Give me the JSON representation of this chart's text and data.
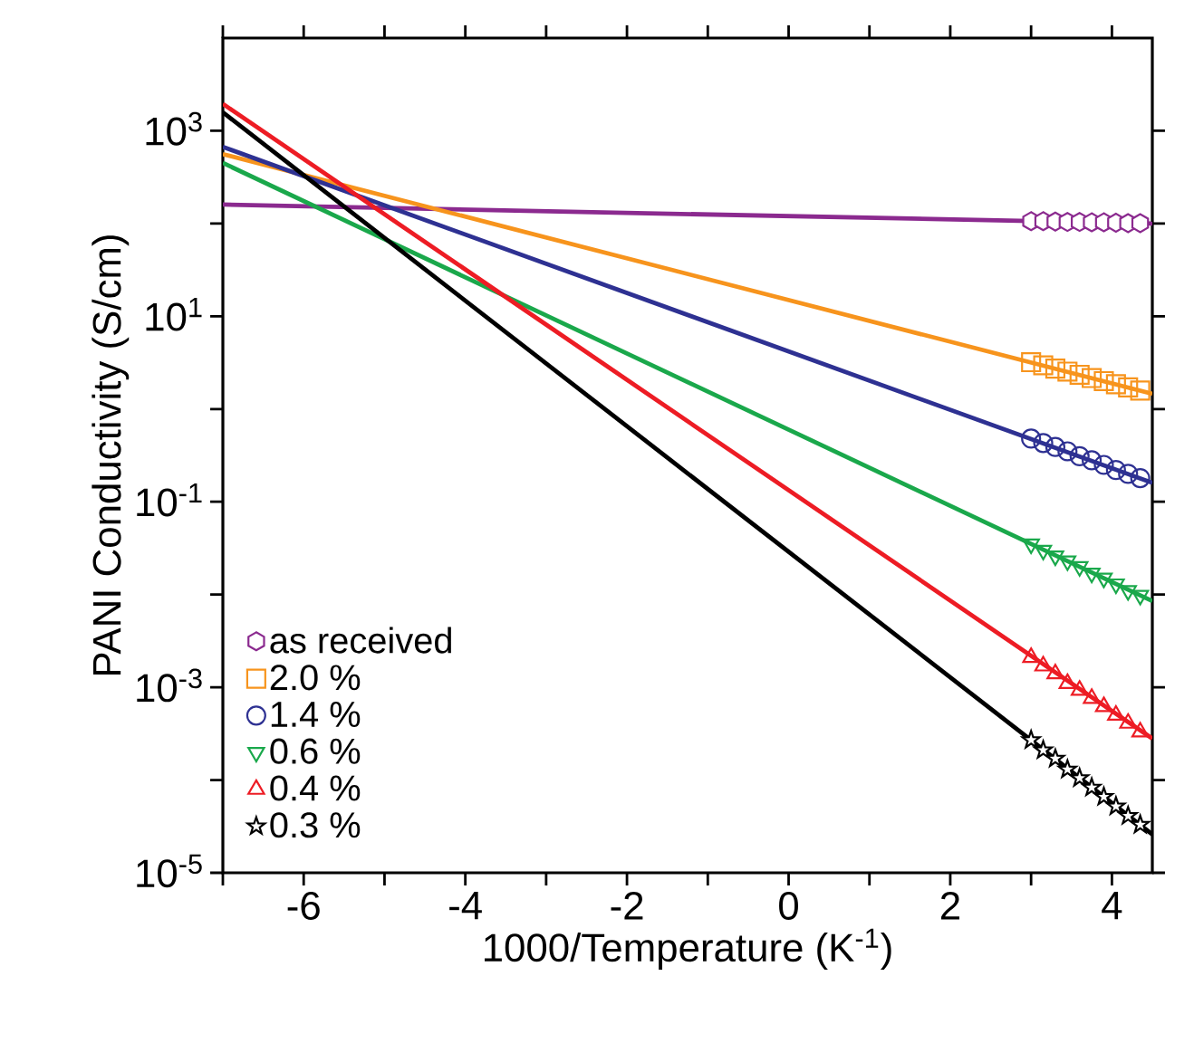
{
  "chart_data": {
    "type": "scatter",
    "xlabel": "1000/Temperature (K$^{-1}$)",
    "ylabel": "PANI Conductivity (S/cm)",
    "xlim": [
      -7,
      4.5
    ],
    "ylim": [
      1e-05,
      10000
    ],
    "log": "y",
    "legend": "bottom left",
    "grid": false,
    "xticks": [
      {
        "value": -7,
        "label": null
      },
      -6,
      {
        "value": -5,
        "label": null
      },
      -4,
      {
        "value": -3,
        "label": null
      },
      -2,
      {
        "value": -1,
        "label": null
      },
      0,
      {
        "value": 1,
        "label": null
      },
      2,
      {
        "value": 3,
        "label": null
      },
      4
    ],
    "yticks": [
      {
        "value": 1e-05,
        "label": "10$^{-5}$"
      },
      {
        "value": 0.0001,
        "label": null
      },
      {
        "value": 0.001,
        "label": "10$^{-3}$"
      },
      {
        "value": 0.01,
        "label": null
      },
      {
        "value": 0.1,
        "label": "10$^{-1}$"
      },
      {
        "value": 1,
        "label": null
      },
      {
        "value": 10,
        "label": "10$^{1}$"
      },
      {
        "value": 100,
        "label": null
      },
      {
        "value": 1000,
        "label": "10$^{3}$"
      }
    ],
    "series": [
      {
        "type": "line",
        "color": "#8b2a8f",
        "marker": "none",
        "x": [
          -7,
          4.5
        ],
        "values": [
          160,
          100
        ]
      },
      {
        "type": "line",
        "color": "#f7941d",
        "marker": "none",
        "x": [
          -7,
          4.5
        ],
        "values": [
          560,
          1.46
        ]
      },
      {
        "type": "line",
        "color": "#2e3192",
        "marker": "none",
        "x": [
          -7,
          4.5
        ],
        "values": [
          670,
          0.16
        ]
      },
      {
        "type": "line",
        "color": "#1aa84b",
        "marker": "none",
        "x": [
          -7,
          4.5
        ],
        "values": [
          450,
          0.0085
        ]
      },
      {
        "type": "line",
        "color": "#ed1c24",
        "marker": "none",
        "x": [
          -7,
          4.5
        ],
        "values": [
          1950,
          0.00028
        ]
      },
      {
        "type": "line",
        "color": "#000000",
        "marker": "none",
        "x": [
          -7,
          4.5
        ],
        "values": [
          1580,
          2.6e-05
        ]
      },
      {
        "name": "as received",
        "color": "#8b2a8f",
        "x": [
          3.0,
          3.15,
          3.3,
          3.45,
          3.6,
          3.75,
          3.9,
          4.05,
          4.2,
          4.35
        ],
        "values": [
          106,
          106,
          105,
          104,
          104,
          103,
          103,
          102,
          101,
          101
        ]
      },
      {
        "name": "2.0 %",
        "color": "#f7941d",
        "marker": "square",
        "x": [
          3.0,
          3.15,
          3.3,
          3.45,
          3.6,
          3.75,
          3.9,
          4.05,
          4.2,
          4.35
        ],
        "values": [
          3.2,
          2.96,
          2.73,
          2.53,
          2.34,
          2.16,
          2.0,
          1.85,
          1.71,
          1.58
        ]
      },
      {
        "name": "1.4 %",
        "color": "#2e3192",
        "marker": "circle",
        "x": [
          3.0,
          3.15,
          3.3,
          3.45,
          3.6,
          3.75,
          3.9,
          4.05,
          4.2,
          4.35
        ],
        "values": [
          0.48,
          0.43,
          0.39,
          0.35,
          0.31,
          0.28,
          0.25,
          0.22,
          0.2,
          0.18
        ]
      },
      {
        "name": "0.6 %",
        "color": "#1aa84b",
        "marker": "triangle down",
        "x": [
          3.0,
          3.15,
          3.3,
          3.45,
          3.6,
          3.75,
          3.9,
          4.05,
          4.2,
          4.35
        ],
        "values": [
          0.035,
          0.03,
          0.026,
          0.023,
          0.02,
          0.017,
          0.015,
          0.013,
          0.011,
          0.0098
        ]
      },
      {
        "name": "0.4 %",
        "color": "#ed1c24",
        "marker": "triangle",
        "x": [
          3.0,
          3.15,
          3.3,
          3.45,
          3.6,
          3.75,
          3.9,
          4.05,
          4.2,
          4.35
        ],
        "values": [
          0.0021,
          0.0017,
          0.0014,
          0.0011,
          0.00093,
          0.00076,
          0.00062,
          0.0005,
          0.00041,
          0.00033
        ]
      },
      {
        "name": "0.3 %",
        "color": "#000000",
        "marker": "star",
        "x": [
          3.0,
          3.15,
          3.3,
          3.45,
          3.6,
          3.75,
          3.9,
          4.05,
          4.2,
          4.35
        ],
        "values": [
          0.00027,
          0.00021,
          0.00017,
          0.00013,
          0.000105,
          8.3e-05,
          6.6e-05,
          5.2e-05,
          4.1e-05,
          3.3e-05
        ]
      }
    ]
  }
}
